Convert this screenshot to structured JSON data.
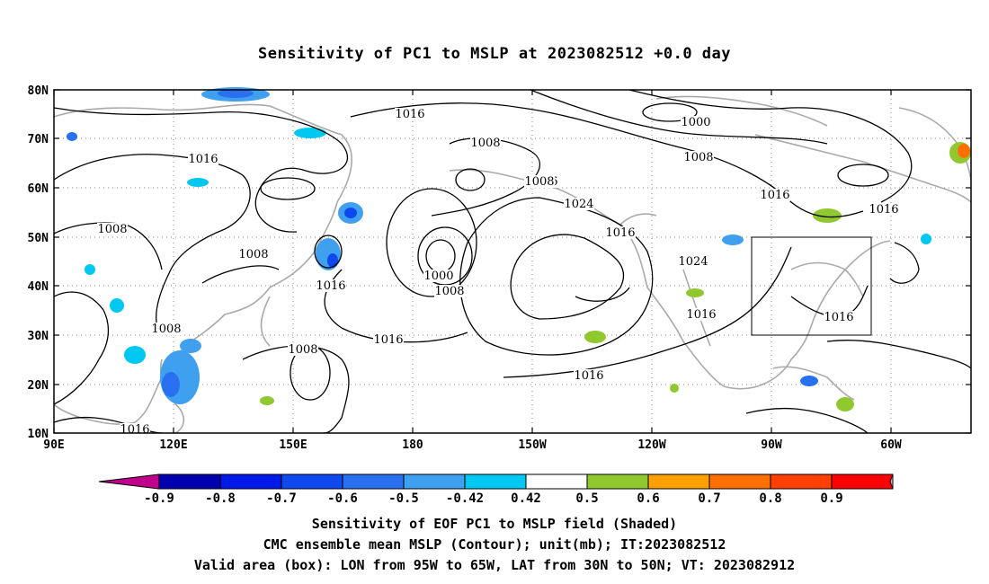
{
  "title": "Sensitivity of PC1 to MSLP at 2023082512 +0.0 day",
  "map": {
    "lat_ticks": [
      "80N",
      "70N",
      "60N",
      "50N",
      "40N",
      "30N",
      "20N",
      "10N"
    ],
    "lon_ticks": [
      "90E",
      "120E",
      "150E",
      "180",
      "150W",
      "120W",
      "90W",
      "60W"
    ],
    "valid_box": {
      "lon_w": "95W",
      "lon_e": "65W",
      "lat_s": "30N",
      "lat_n": "50N"
    },
    "contour_labels": [
      "1016",
      "1016",
      "1000",
      "1008",
      "1008",
      "1016",
      "1016",
      "1024",
      "1016",
      "1008",
      "1008",
      "1008",
      "1016",
      "1000",
      "1008",
      "1024",
      "1016",
      "1008",
      "1016",
      "1016",
      "1016",
      "1016",
      "1016",
      "1008"
    ]
  },
  "colorbar": {
    "labels": [
      "-0.9",
      "-0.8",
      "-0.7",
      "-0.6",
      "-0.5",
      "-0.42",
      "0.42",
      "0.5",
      "0.6",
      "0.7",
      "0.8",
      "0.9"
    ],
    "colors": [
      "#c0008c",
      "#0000b0",
      "#0018e8",
      "#1048f0",
      "#2870f0",
      "#40a0f0",
      "#00c8f0",
      "#ffffff",
      "#90c830",
      "#ffa000",
      "#ff7000",
      "#ff4000",
      "#ff0000",
      "#f0a0c8"
    ]
  },
  "captions": {
    "line1": "Sensitivity of EOF PC1 to MSLP field (Shaded)",
    "line2": "CMC ensemble mean MSLP (Contour); unit(mb); IT:2023082512",
    "line3": "Valid area (box): LON from 95W to 65W, LAT from 30N to 50N; VT: 2023082912"
  }
}
